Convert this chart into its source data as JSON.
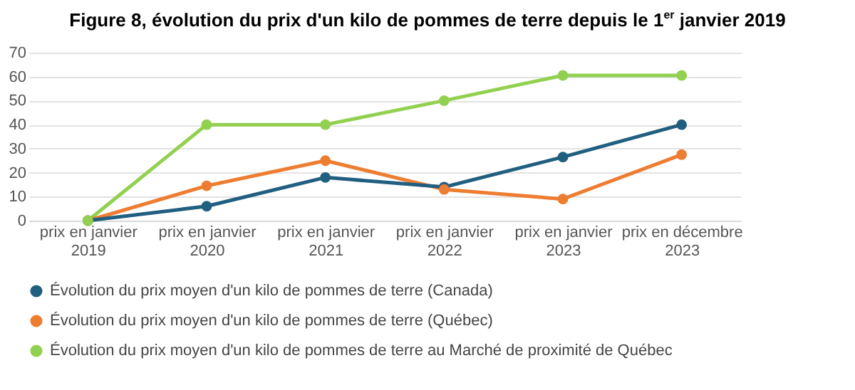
{
  "chart_data": {
    "type": "line",
    "title": "Figure 8, évolution du prix d'un kilo de pommes de terre depuis le 1$^{er}$ janvier 2019",
    "categories": [
      "prix en janvier 2019",
      "prix en janvier 2020",
      "prix en janvier 2021",
      "prix en janvier 2022",
      "prix en janvier 2023",
      "prix en décembre 2023"
    ],
    "series": [
      {
        "name": "Évolution du prix moyen d'un kilo de pommes de terre (Canada)",
        "color": "#215f80",
        "values": [
          0,
          6,
          18,
          14,
          26.5,
          40
        ]
      },
      {
        "name": "Évolution du prix moyen d'un kilo de pommes de terre (Québec)",
        "color": "#ed7d31",
        "values": [
          0,
          14.5,
          25,
          13,
          9,
          27.5
        ]
      },
      {
        "name": "Évolution du prix moyen d'un kilo de pommes de terre au Marché de proximité de Québec",
        "color": "#92d050",
        "values": [
          0,
          40,
          40,
          50,
          60.5,
          60.5
        ]
      }
    ],
    "ylim": [
      0,
      70
    ],
    "yticks": [
      0,
      10,
      20,
      30,
      40,
      50,
      60,
      70
    ],
    "grid": "y",
    "legend": "bottom",
    "marker": "circle",
    "line_style": "solid"
  }
}
